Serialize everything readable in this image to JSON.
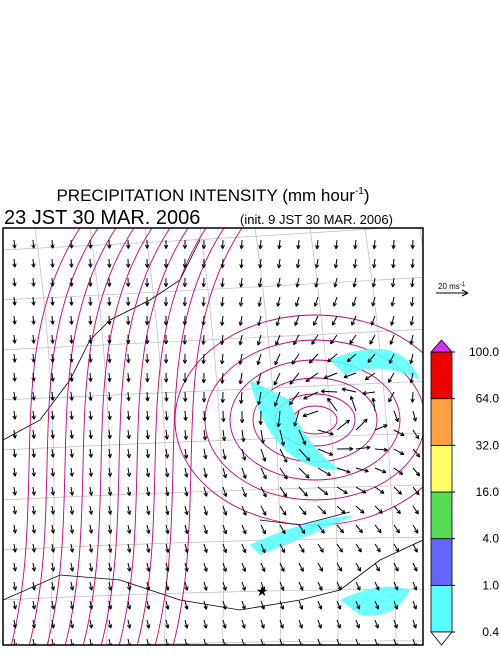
{
  "header": {
    "title": {
      "main": "PRECIPITATION INTENSITY (mm hour",
      "superscript": "-1",
      "close": ")"
    },
    "valid_time": "23 JST 30 MAR. 2006",
    "init_time": "(init. 9 JST 30 MAR. 2006)"
  },
  "reference_vector": {
    "label": "20 ms",
    "superscript": "-1"
  },
  "colorbar": {
    "levels": [
      {
        "value": 0.4,
        "label": "0.4"
      },
      {
        "value": 1,
        "label": "1.0"
      },
      {
        "value": 4,
        "label": "4.0"
      },
      {
        "value": 16,
        "label": "16.0"
      },
      {
        "value": 32,
        "label": "32.0"
      },
      {
        "value": 64,
        "label": "64.0"
      },
      {
        "value": 100,
        "label": "100.0"
      }
    ],
    "colors": [
      "#55ffff",
      "#6464ff",
      "#55dd55",
      "#ffff66",
      "#ffa040",
      "#ee0000"
    ],
    "under_color": "#ffffff",
    "over_color": "#cc33ff"
  }
}
